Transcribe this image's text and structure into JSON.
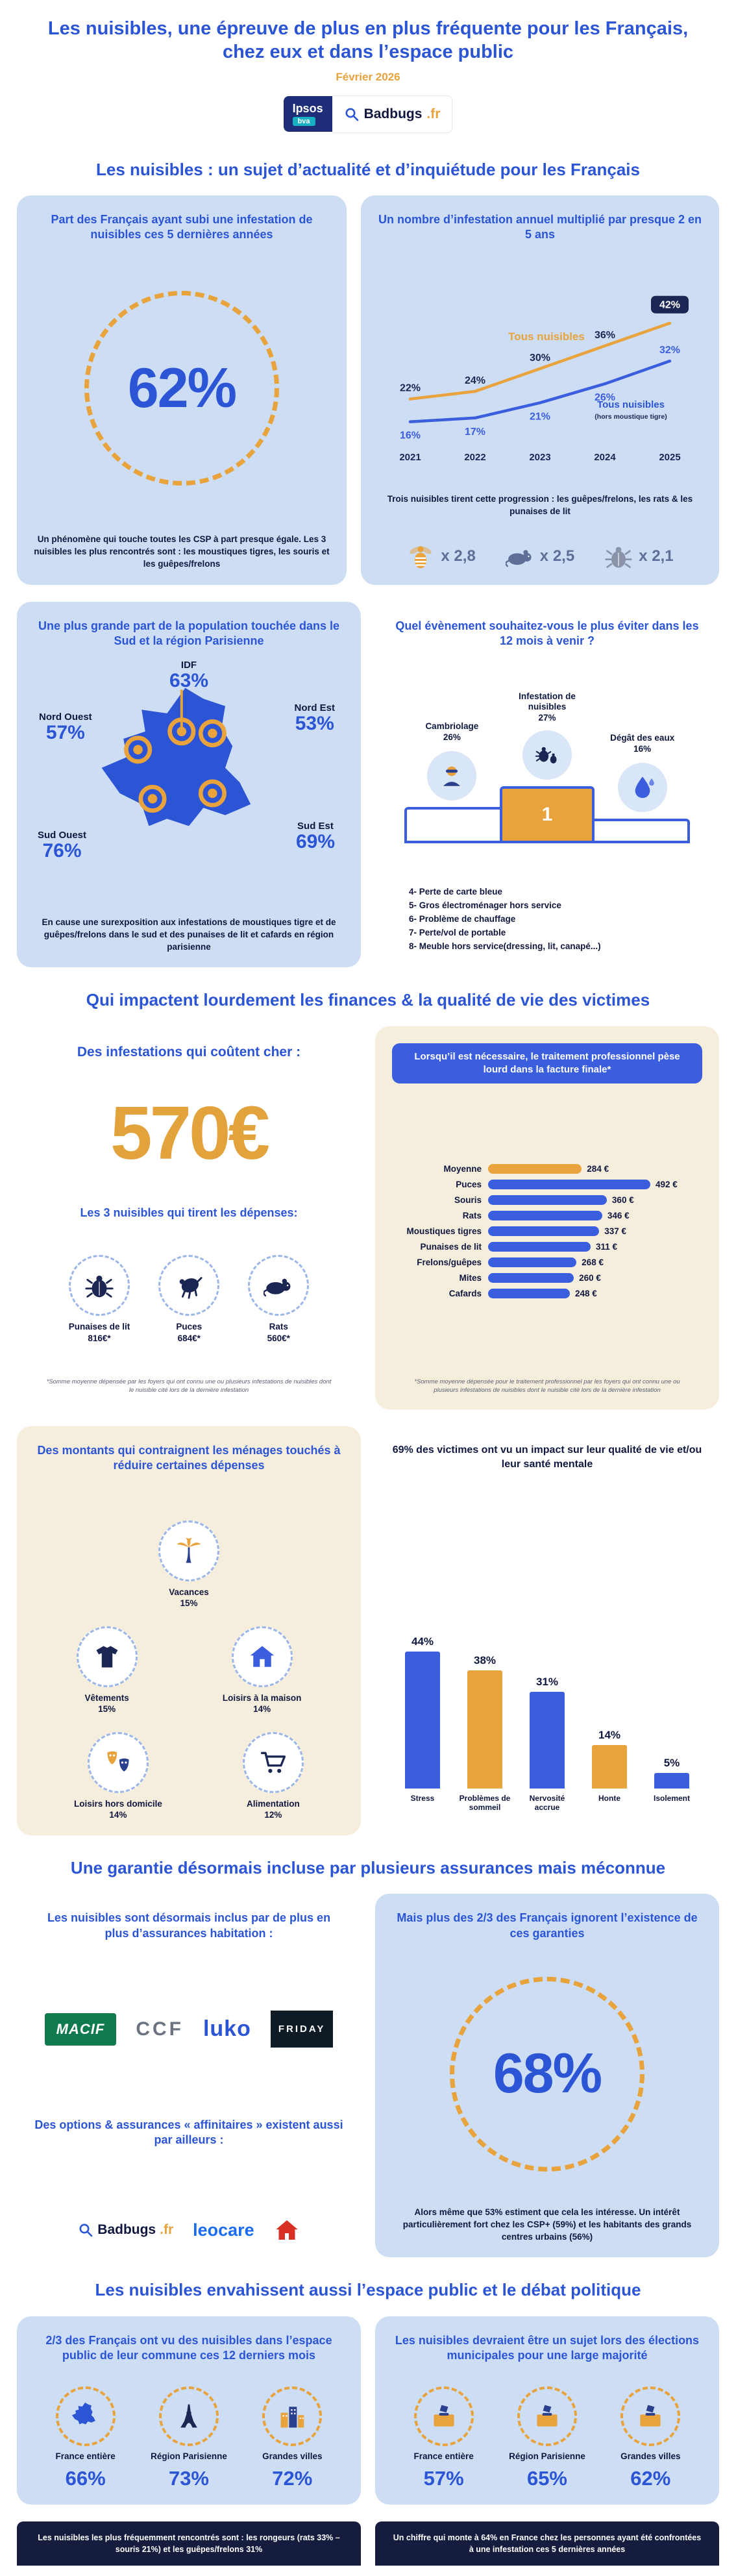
{
  "colors": {
    "blue": "#2b55d4",
    "orange": "#E8A33C",
    "gold": "#E2A33C",
    "light_blue_bg": "#cdddf4",
    "cream_bg": "#f6eedd",
    "navy": "#10173f",
    "bar_blue": "#3b5ede",
    "footer_navy": "#151c3d"
  },
  "header": {
    "title_line1": "Les nuisibles, une épreuve de plus en plus fréquente pour les Français,",
    "title_line2": "chez eux et dans l’espace public",
    "date": "Février 2026"
  },
  "logos": {
    "ipsos": "Ipsos",
    "bva": "bva",
    "badbugs_name": "Badbugs",
    "badbugs_tld": ".fr"
  },
  "chart_data": [
    {
      "id": "infestation-trend",
      "type": "line",
      "title": "Un nombre d’infestation annuel multiplié par presque 2 en 5 ans",
      "x": [
        "2021",
        "2022",
        "2023",
        "2024",
        "2025"
      ],
      "series": [
        {
          "name": "Tous nuisibles",
          "color": "#E8A33C",
          "values": [
            22,
            24,
            30,
            36,
            42
          ]
        },
        {
          "name": "Tous nuisibles",
          "subname": "(hors moustique tigre)",
          "color": "#3b5ede",
          "values": [
            16,
            17,
            21,
            26,
            32
          ]
        }
      ],
      "value_suffix": "%",
      "ylim": [
        12,
        50
      ],
      "grid": false,
      "legend_position": "overlay"
    },
    {
      "id": "treatment-cost",
      "type": "bar",
      "orientation": "horizontal",
      "title": "Lorsqu’il est nécessaire, le traitement professionnel pèse lourd dans la facture finale*",
      "categories": [
        "Moyenne",
        "Puces",
        "Souris",
        "Rats",
        "Moustiques tigres",
        "Punaises de lit",
        "Frelons/guêpes",
        "Mites",
        "Cafards"
      ],
      "values": [
        284,
        492,
        360,
        346,
        337,
        311,
        268,
        260,
        248
      ],
      "value_labels": [
        "284 €",
        "492 €",
        "360 €",
        "346 €",
        "337 €",
        "311 €",
        "268 €",
        "260 €",
        "248 €"
      ],
      "colors": [
        "#E8A33C",
        "#3b5ede",
        "#3b5ede",
        "#3b5ede",
        "#3b5ede",
        "#3b5ede",
        "#3b5ede",
        "#3b5ede",
        "#3b5ede"
      ],
      "xlim": [
        0,
        492
      ]
    },
    {
      "id": "life-impact",
      "type": "bar",
      "orientation": "vertical",
      "title": "69% des victimes ont vu un impact sur leur qualité de vie et/ou leur santé mentale",
      "categories": [
        "Stress",
        "Problèmes de sommeil",
        "Nervosité accrue",
        "Honte",
        "Isolement"
      ],
      "values": [
        44,
        38,
        31,
        14,
        5
      ],
      "value_labels": [
        "44%",
        "38%",
        "31%",
        "14%",
        "5%"
      ],
      "colors": [
        "#3b5ede",
        "#E8A33C",
        "#3b5ede",
        "#E8A33C",
        "#3b5ede"
      ],
      "ylim": [
        0,
        50
      ]
    }
  ],
  "s1": {
    "heading": "Les nuisibles : un sujet d’actualité et d’inquiétude pour les Français",
    "left": {
      "title": "Part des Français ayant subi une infestation de nuisibles ces 5 dernières années",
      "stat": "62%",
      "footer": "Un phénomène qui touche toutes les CSP à part presque égale. Les 3 nuisibles les plus rencontrés sont : les moustiques tigres, les souris et les guêpes/frelons"
    },
    "right": {
      "footer": "Trois nuisibles tirent cette progression : les guêpes/frelons, les rats & les punaises de lit",
      "multipliers": [
        {
          "icon": "wasp-icon",
          "value": "x 2,8"
        },
        {
          "icon": "rat-icon",
          "value": "x 2,5"
        },
        {
          "icon": "bedbug-icon",
          "value": "x 2,1"
        }
      ]
    }
  },
  "s2": {
    "left": {
      "title": "Une plus grande part de la population touchée dans le Sud et la région Parisienne",
      "regions": [
        {
          "name": "IDF",
          "value": "63%"
        },
        {
          "name": "Nord Ouest",
          "value": "57%"
        },
        {
          "name": "Nord Est",
          "value": "53%"
        },
        {
          "name": "Sud Ouest",
          "value": "76%"
        },
        {
          "name": "Sud Est",
          "value": "69%"
        }
      ],
      "footer": "En cause une surexposition aux infestations de moustiques tigre et de guêpes/frelons dans le sud et des punaises de lit et cafards en région parisienne"
    },
    "right": {
      "title": "Quel évènement souhaitez-vous le plus éviter dans les 12 mois à venir ?",
      "podium": [
        {
          "rank": "2",
          "label": "Cambriolage",
          "value": "26%",
          "icon": "burglar-icon"
        },
        {
          "rank": "1",
          "label": "Infestation de nuisibles",
          "value": "27%",
          "icon": "bugs-icon"
        },
        {
          "rank": "3",
          "label": "Dégât des eaux",
          "value": "16%",
          "icon": "waterdrop-icon"
        }
      ],
      "others": [
        "4- Perte de carte bleue",
        "5- Gros électroménager hors service",
        "6- Problème de chauffage",
        "7- Perte/vol de portable",
        "8- Meuble hors service(dressing, lit, canapé...)"
      ]
    }
  },
  "s3": {
    "heading": "Qui impactent lourdement les finances & la qualité de vie des victimes",
    "cost": {
      "title": "Des infestations qui coûtent cher :",
      "stat": "570€",
      "subtitle": "Les 3 nuisibles qui tirent les dépenses:",
      "items": [
        {
          "icon": "bedbug-icon",
          "label": "Punaises de lit",
          "value": "816€*"
        },
        {
          "icon": "flea-icon",
          "label": "Puces",
          "value": "684€*"
        },
        {
          "icon": "rat-icon",
          "label": "Rats",
          "value": "560€*"
        }
      ],
      "footnote": "*Somme moyenne dépensée par les foyers qui ont connu une ou plusieurs infestations de nuisibles dont le nuisible cité lors de la dernière infestation"
    },
    "treatment": {
      "footnote": "*Somme moyenne dépensée pour le traitement professionnel par les foyers qui ont connu une ou plusieurs infestations de nuisibles dont le nuisible cité lors de la dernière infestation"
    },
    "savings": {
      "title": "Des montants qui contraignent les ménages touchés à réduire certaines dépenses",
      "items": [
        {
          "icon": "palm-icon",
          "label": "Vacances",
          "value": "15%"
        },
        {
          "icon": "tshirt-icon",
          "label": "Vêtements",
          "value": "15%"
        },
        {
          "icon": "home-icon",
          "label": "Loisirs à la maison",
          "value": "14%"
        },
        {
          "icon": "masks-icon",
          "label": "Loisirs hors domicile",
          "value": "14%"
        },
        {
          "icon": "cart-icon",
          "label": "Alimentation",
          "value": "12%"
        }
      ]
    }
  },
  "s4": {
    "heading": "Une garantie désormais incluse par plusieurs assurances mais méconnue",
    "left": {
      "title": "Les nuisibles sont désormais inclus par de plus en plus d’assurances habitation :",
      "insurers": [
        "MACIF",
        "CCF",
        "luko",
        "FRIDAY"
      ],
      "subtitle": "Des options & assurances « affinitaires » existent aussi par ailleurs :",
      "partners": [
        "Badbugs.fr",
        "leocare"
      ]
    },
    "right": {
      "title": "Mais plus des 2/3 des Français ignorent l’existence de ces garanties",
      "stat": "68%",
      "footer": "Alors même que 53% estiment que cela les intéresse. Un intérêt particulièrement fort chez les CSP+ (59%) et les habitants des grands centres urbains (56%)"
    }
  },
  "s5": {
    "heading": "Les nuisibles envahissent aussi l’espace public et le débat politique",
    "left": {
      "title": "2/3 des Français ont vu des nuisibles dans l’espace public de leur commune ces 12 derniers mois",
      "stats": [
        {
          "icon": "france-icon",
          "label": "France entière",
          "value": "66%"
        },
        {
          "icon": "eiffel-icon",
          "label": "Région Parisienne",
          "value": "73%"
        },
        {
          "icon": "city-icon",
          "label": "Grandes villes",
          "value": "72%"
        }
      ],
      "footer": "Les nuisibles les plus fréquemment rencontrés sont : les rongeurs (rats 33% – souris 21%) et les guêpes/frelons 31%"
    },
    "right": {
      "title": "Les nuisibles devraient être un sujet lors des élections municipales pour une large majorité",
      "stats": [
        {
          "icon": "ballot-icon",
          "label": "France entière",
          "value": "57%"
        },
        {
          "icon": "ballot-icon",
          "label": "Région Parisienne",
          "value": "65%"
        },
        {
          "icon": "ballot-icon",
          "label": "Grandes villes",
          "value": "62%"
        }
      ],
      "footer": "Un chiffre qui monte à 64% en France chez les personnes ayant été confrontées à une infestation ces 5 dernières années"
    }
  }
}
